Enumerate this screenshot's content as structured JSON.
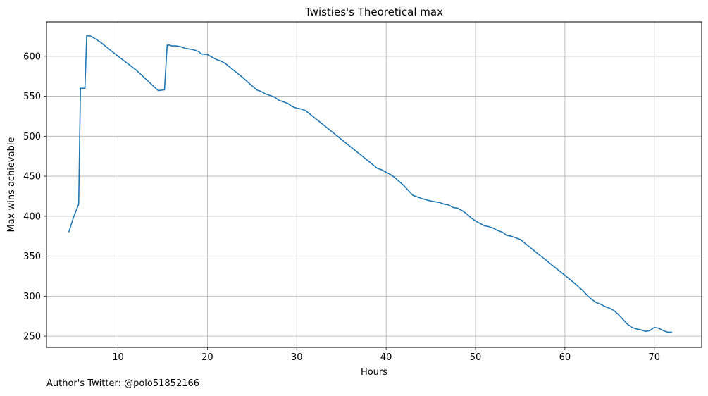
{
  "footer": {
    "twitter": "Author's Twitter: @polo51852166"
  },
  "chart_data": {
    "type": "line",
    "title": "Twisties's Theoretical max",
    "xlabel": "Hours",
    "ylabel": "Max wins achievable",
    "xlim": [
      2.0,
      75.3
    ],
    "ylim": [
      236,
      643
    ],
    "xticks": [
      10,
      20,
      30,
      40,
      50,
      60,
      70
    ],
    "yticks": [
      250,
      300,
      350,
      400,
      450,
      500,
      550,
      600
    ],
    "grid": true,
    "line_color": "#1f77b4",
    "series": [
      {
        "points": [
          [
            4.5,
            380
          ],
          [
            5.0,
            398
          ],
          [
            5.6,
            415
          ],
          [
            5.8,
            560
          ],
          [
            6.3,
            560
          ],
          [
            6.5,
            626
          ],
          [
            7.0,
            625
          ],
          [
            8.0,
            618
          ],
          [
            10.0,
            600
          ],
          [
            12.0,
            583
          ],
          [
            14.5,
            557
          ],
          [
            15.2,
            558
          ],
          [
            15.5,
            614
          ],
          [
            15.8,
            614
          ],
          [
            16.0,
            613
          ],
          [
            16.5,
            613
          ],
          [
            17.0,
            612
          ],
          [
            17.5,
            610
          ],
          [
            18.0,
            609
          ],
          [
            18.5,
            608
          ],
          [
            19.0,
            606
          ],
          [
            19.3,
            603
          ],
          [
            20.0,
            602
          ],
          [
            20.5,
            599
          ],
          [
            21.0,
            596
          ],
          [
            21.5,
            594
          ],
          [
            22.0,
            591
          ],
          [
            23.0,
            582
          ],
          [
            24.0,
            573
          ],
          [
            25.0,
            563
          ],
          [
            25.5,
            558
          ],
          [
            26.0,
            556
          ],
          [
            26.5,
            553
          ],
          [
            27.0,
            551
          ],
          [
            27.5,
            549
          ],
          [
            28.0,
            545
          ],
          [
            28.5,
            543
          ],
          [
            29.0,
            541
          ],
          [
            29.5,
            537
          ],
          [
            30.0,
            535
          ],
          [
            30.5,
            534
          ],
          [
            31.0,
            532
          ],
          [
            32.0,
            523
          ],
          [
            33.0,
            514
          ],
          [
            34.0,
            505
          ],
          [
            35.0,
            496
          ],
          [
            36.0,
            487
          ],
          [
            37.0,
            478
          ],
          [
            38.0,
            469
          ],
          [
            39.0,
            460
          ],
          [
            39.5,
            458
          ],
          [
            40.0,
            455
          ],
          [
            40.5,
            452
          ],
          [
            41.0,
            448
          ],
          [
            41.5,
            443
          ],
          [
            42.0,
            438
          ],
          [
            42.5,
            432
          ],
          [
            43.0,
            426
          ],
          [
            44.0,
            422
          ],
          [
            45.0,
            419
          ],
          [
            46.0,
            417
          ],
          [
            46.5,
            415
          ],
          [
            47.0,
            414
          ],
          [
            47.5,
            411
          ],
          [
            48.0,
            410
          ],
          [
            48.5,
            407
          ],
          [
            49.0,
            403
          ],
          [
            49.5,
            398
          ],
          [
            50.0,
            394
          ],
          [
            50.5,
            391
          ],
          [
            51.0,
            388
          ],
          [
            51.5,
            387
          ],
          [
            52.0,
            385
          ],
          [
            52.5,
            382
          ],
          [
            53.0,
            380
          ],
          [
            53.5,
            376
          ],
          [
            54.0,
            375
          ],
          [
            54.5,
            373
          ],
          [
            55.0,
            371
          ],
          [
            56.0,
            362
          ],
          [
            57.0,
            353
          ],
          [
            58.0,
            344
          ],
          [
            59.0,
            335
          ],
          [
            60.0,
            326
          ],
          [
            61.0,
            317
          ],
          [
            62.0,
            307
          ],
          [
            62.5,
            301
          ],
          [
            63.0,
            296
          ],
          [
            63.5,
            292
          ],
          [
            64.0,
            290
          ],
          [
            64.5,
            287
          ],
          [
            65.0,
            285
          ],
          [
            65.5,
            282
          ],
          [
            66.0,
            277
          ],
          [
            66.5,
            271
          ],
          [
            67.0,
            265
          ],
          [
            67.5,
            261
          ],
          [
            68.0,
            259
          ],
          [
            68.5,
            258
          ],
          [
            69.0,
            256
          ],
          [
            69.5,
            257
          ],
          [
            70.0,
            261
          ],
          [
            70.5,
            260
          ],
          [
            71.0,
            257
          ],
          [
            71.5,
            255
          ],
          [
            72.0,
            255
          ]
        ]
      }
    ]
  }
}
